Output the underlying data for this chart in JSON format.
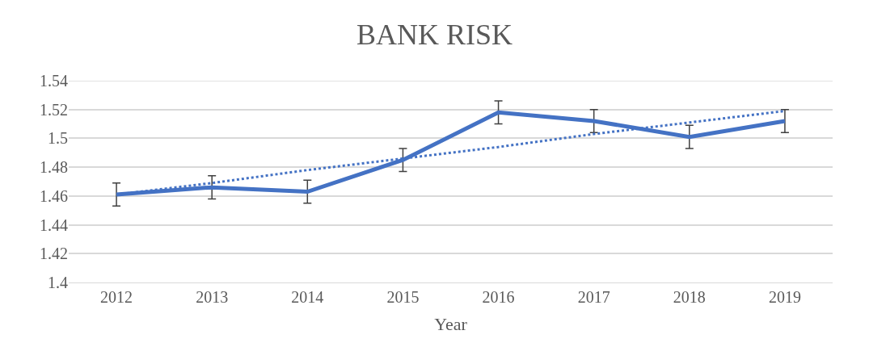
{
  "chart_data": {
    "type": "line",
    "title": "BANK RISK",
    "xlabel": "Year",
    "categories": [
      "2012",
      "2013",
      "2014",
      "2015",
      "2016",
      "2017",
      "2018",
      "2019"
    ],
    "series": [
      {
        "color": "#4472c4",
        "values": [
          1.461,
          1.466,
          1.463,
          1.485,
          1.518,
          1.512,
          1.501,
          1.512
        ],
        "errors": [
          0.008,
          0.008,
          0.008,
          0.008,
          0.008,
          0.008,
          0.008,
          0.008
        ],
        "line_style": "solid"
      },
      {
        "type": "line",
        "color": "#4472c4",
        "values": [
          1.461,
          1.469,
          1.478,
          1.486,
          1.494,
          1.503,
          1.511,
          1.519
        ],
        "line_style": "dotted"
      }
    ],
    "ylim": [
      1.4,
      1.54
    ],
    "yticks": [
      1.4,
      1.42,
      1.44,
      1.46,
      1.48,
      1.5,
      1.52,
      1.54
    ],
    "grid": "y",
    "marker": "none"
  }
}
